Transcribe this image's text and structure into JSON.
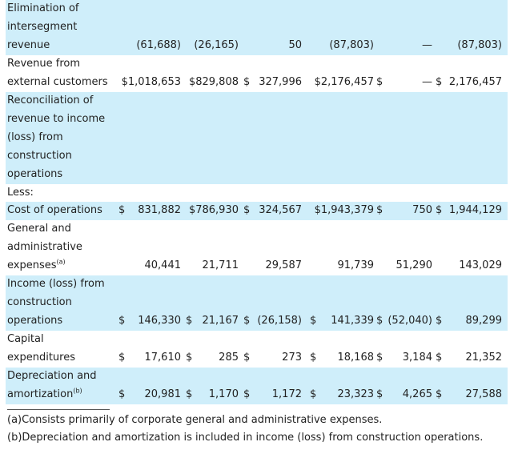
{
  "rows": [
    {
      "label_lines": [
        "Elimination of",
        "intersegment",
        "revenue"
      ],
      "shaded": true,
      "values": [
        {
          "col": 0,
          "text": "(61,688)"
        },
        {
          "col": 1,
          "text": "(26,165)"
        },
        {
          "col": 2,
          "text": "50"
        },
        {
          "col": 3,
          "text": "(87,803)"
        },
        {
          "col": 4,
          "text": "—"
        },
        {
          "col": 5,
          "text": "(87,803)"
        }
      ]
    },
    {
      "label_lines": [
        "Revenue from",
        "external customers"
      ],
      "shaded": false,
      "values": [
        {
          "col": 0,
          "text": "$1,018,653"
        },
        {
          "col": 1,
          "text": "$829,808"
        },
        {
          "col": 2,
          "cur": "$",
          "text": "327,996"
        },
        {
          "col": 3,
          "text": "$2,176,457"
        },
        {
          "col": 4,
          "cur": "$",
          "text": "—"
        },
        {
          "col": 5,
          "cur": "$",
          "text": "2,176,457"
        }
      ]
    },
    {
      "label_lines": [
        "Reconciliation of",
        "revenue to income",
        "(loss) from",
        "construction",
        "operations"
      ],
      "shaded": true,
      "values": []
    },
    {
      "label_lines": [
        "Less:"
      ],
      "shaded": false,
      "values": []
    },
    {
      "label_lines": [
        "Cost of operations"
      ],
      "shaded": true,
      "values": [
        {
          "col": 0,
          "cur": "$",
          "text": "831,882"
        },
        {
          "col": 1,
          "text": "$786,930"
        },
        {
          "col": 2,
          "cur": "$",
          "text": "324,567"
        },
        {
          "col": 3,
          "text": "$1,943,379"
        },
        {
          "col": 4,
          "cur": "$",
          "text": "750"
        },
        {
          "col": 5,
          "cur": "$",
          "text": "1,944,129"
        }
      ]
    },
    {
      "label_lines": [
        "General and",
        "administrative",
        "expenses"
      ],
      "label_sup": "(a)",
      "shaded": false,
      "values": [
        {
          "col": 0,
          "text": "40,441"
        },
        {
          "col": 1,
          "text": "21,711"
        },
        {
          "col": 2,
          "text": "29,587"
        },
        {
          "col": 3,
          "text": "91,739"
        },
        {
          "col": 4,
          "text": "51,290"
        },
        {
          "col": 5,
          "text": "143,029"
        }
      ]
    },
    {
      "label_lines": [
        "Income (loss) from",
        "construction",
        "operations"
      ],
      "shaded": true,
      "values": [
        {
          "col": 0,
          "cur": "$",
          "text": "146,330"
        },
        {
          "col": 1,
          "cur": "$",
          "text": "21,167"
        },
        {
          "col": 2,
          "cur": "$",
          "text": "(26,158)"
        },
        {
          "col": 3,
          "cur": "$",
          "text": "141,339"
        },
        {
          "col": 4,
          "cur": "$",
          "text": "(52,040)"
        },
        {
          "col": 5,
          "cur": "$",
          "text": "89,299"
        }
      ]
    },
    {
      "label_lines": [
        "Capital",
        "expenditures"
      ],
      "shaded": false,
      "values": [
        {
          "col": 0,
          "cur": "$",
          "text": "17,610"
        },
        {
          "col": 1,
          "cur": "$",
          "text": "285"
        },
        {
          "col": 2,
          "cur": "$",
          "text": "273"
        },
        {
          "col": 3,
          "cur": "$",
          "text": "18,168"
        },
        {
          "col": 4,
          "cur": "$",
          "text": "3,184"
        },
        {
          "col": 5,
          "cur": "$",
          "text": "21,352"
        }
      ]
    },
    {
      "label_lines": [
        "Depreciation and",
        "amortization"
      ],
      "label_sup": "(b)",
      "shaded": true,
      "values": [
        {
          "col": 0,
          "cur": "$",
          "text": "20,981"
        },
        {
          "col": 1,
          "cur": "$",
          "text": "1,170"
        },
        {
          "col": 2,
          "cur": "$",
          "text": "1,172"
        },
        {
          "col": 3,
          "cur": "$",
          "text": "23,323"
        },
        {
          "col": 4,
          "cur": "$",
          "text": "4,265"
        },
        {
          "col": 5,
          "cur": "$",
          "text": "27,588"
        }
      ]
    }
  ],
  "footnotes": {
    "a": "(a)Consists primarily of corporate general and administrative expenses.",
    "b": "(b)Depreciation and amortization is included in income (loss) from construction operations."
  },
  "colors": {
    "shaded_row": "#cfeefa",
    "text": "#222222"
  }
}
